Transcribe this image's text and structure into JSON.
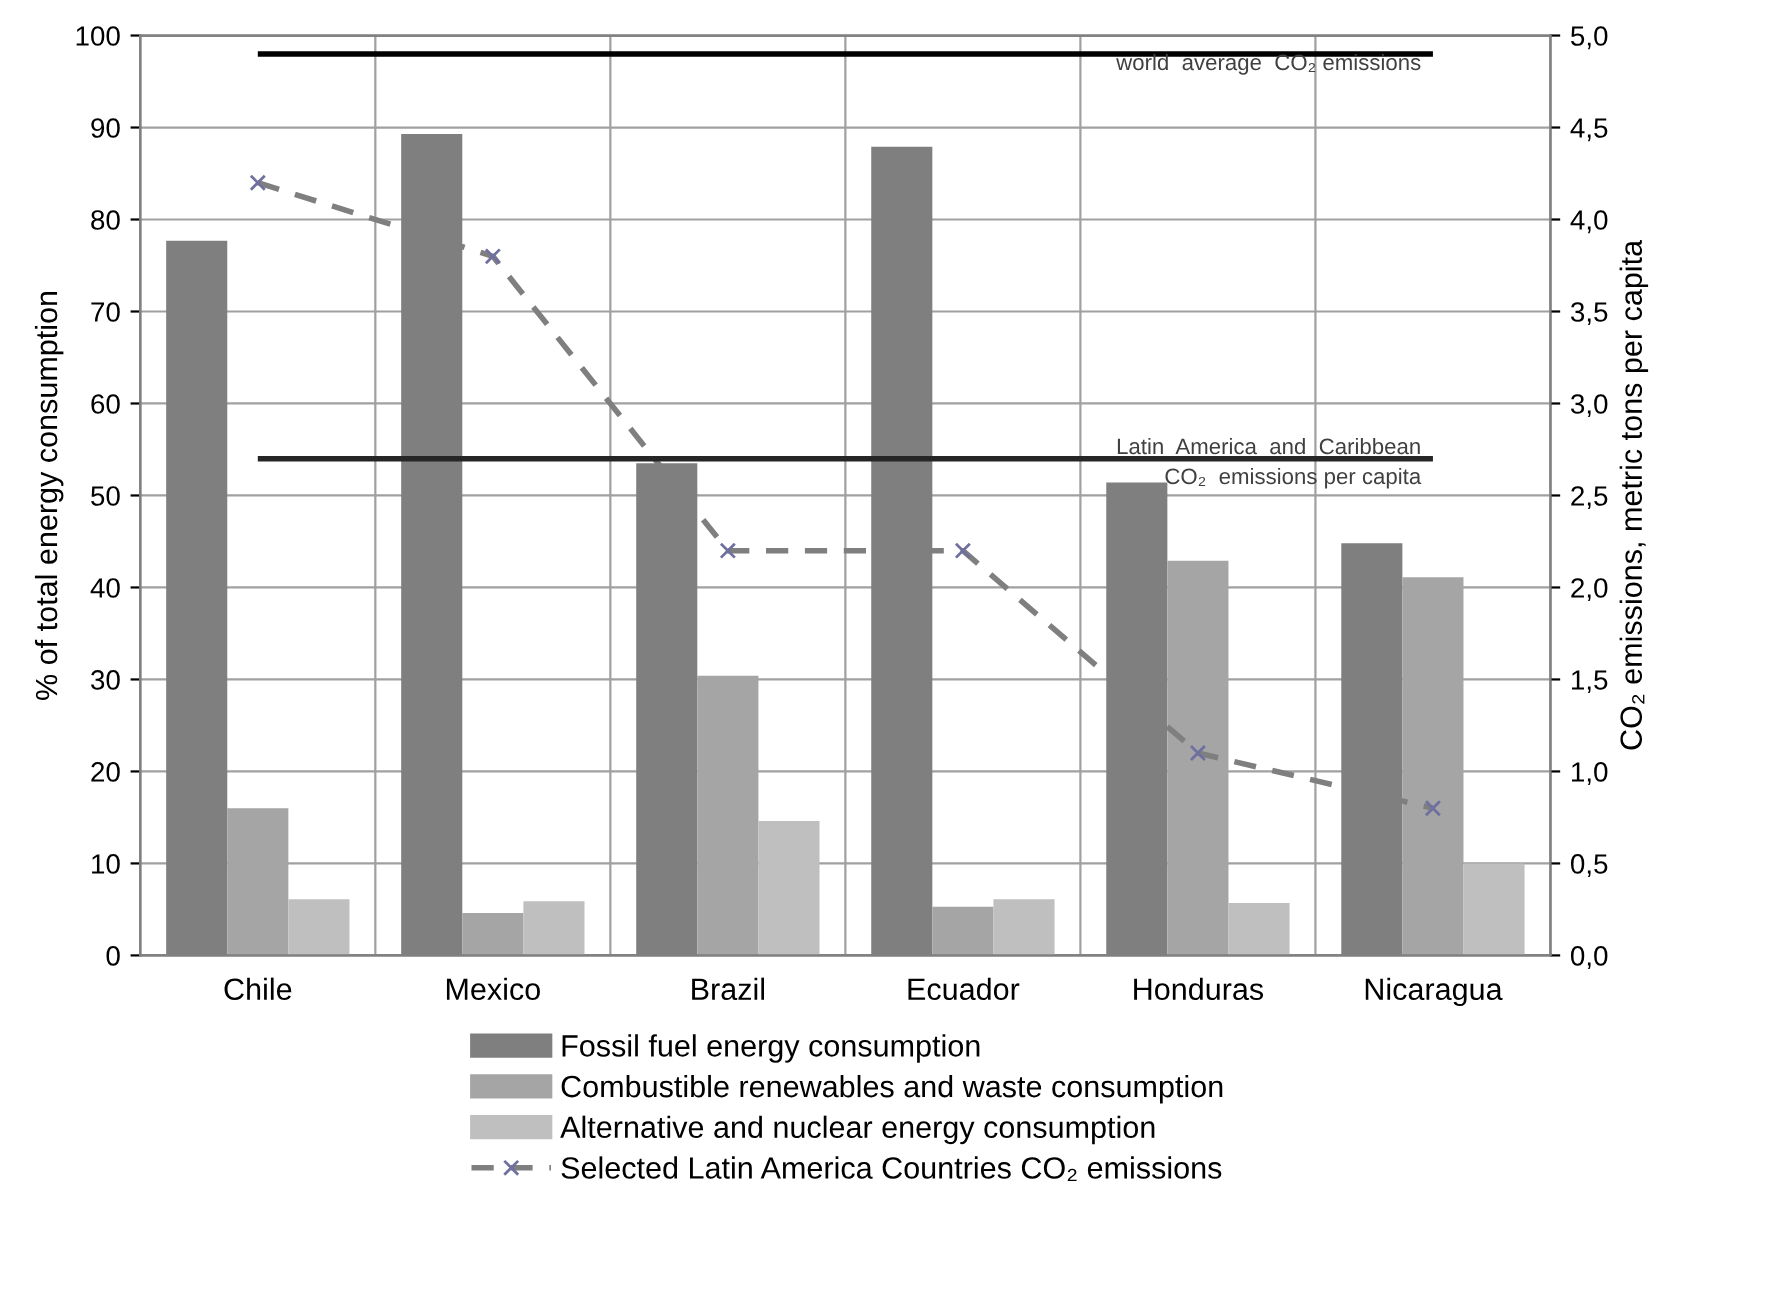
{
  "chart_data": {
    "type": "bar",
    "categories": [
      "Chile",
      "Mexico",
      "Brazil",
      "Ecuador",
      "Honduras",
      "Nicaragua"
    ],
    "ylabel": "% of total energy consumption",
    "y2label": "CO₂ emissions, metric tons per capita",
    "ylim": [
      0,
      100
    ],
    "yticks": [
      0,
      10,
      20,
      30,
      40,
      50,
      60,
      70,
      80,
      90,
      100
    ],
    "y2lim": [
      0,
      5
    ],
    "y2ticks": [
      {
        "value": 0,
        "label": "0,0"
      },
      {
        "value": 0.5,
        "label": "0,5"
      },
      {
        "value": 1,
        "label": "1,0"
      },
      {
        "value": 1.5,
        "label": "1,5"
      },
      {
        "value": 2,
        "label": "2,0"
      },
      {
        "value": 2.5,
        "label": "2,5"
      },
      {
        "value": 3,
        "label": "3,0"
      },
      {
        "value": 3.5,
        "label": "3,5"
      },
      {
        "value": 4,
        "label": "4,0"
      },
      {
        "value": 4.5,
        "label": "4,5"
      },
      {
        "value": 5,
        "label": "5,0"
      }
    ],
    "series": [
      {
        "name": "Fossil fuel energy consumption",
        "color": "#7f7f7f",
        "values": [
          77.7,
          89.3,
          53.5,
          87.9,
          51.4,
          44.8
        ]
      },
      {
        "name": "Combustible renewables and waste consumption",
        "color": "#a5a5a5",
        "values": [
          16.0,
          4.6,
          30.4,
          5.3,
          42.9,
          41.1
        ]
      },
      {
        "name": "Alternative and nuclear energy consumption",
        "color": "#bfbfbf",
        "values": [
          6.1,
          5.9,
          14.6,
          6.1,
          5.7,
          10.0
        ]
      },
      {
        "name": "Selected Latin America Countries CO₂ emissions",
        "type": "line",
        "axis": "y2",
        "color": "#7f7f7f",
        "marker": "cross",
        "line_style": "dashed",
        "values": [
          4.2,
          3.8,
          2.2,
          2.2,
          1.1,
          0.8
        ]
      }
    ],
    "ref_lines": [
      {
        "axis": "y2",
        "value": 4.9,
        "label": "world  average  CO₂ emissions",
        "color": "#000000"
      },
      {
        "axis": "y2",
        "value": 2.7,
        "label": "Latin  America  and  Caribbean\nCO₂  emissions per capita",
        "color": "#262626"
      }
    ],
    "grid": true,
    "legend": "bottom"
  }
}
